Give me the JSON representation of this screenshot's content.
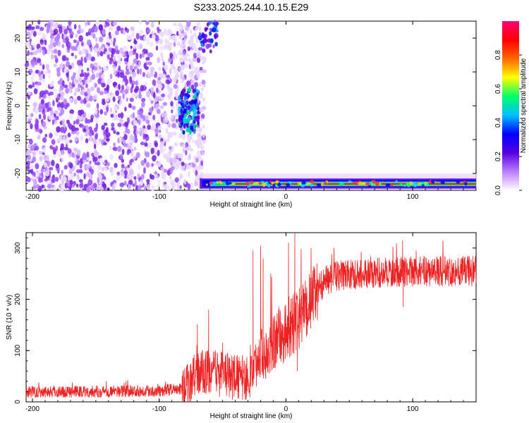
{
  "title": "S233.2025.244.10.15.E29",
  "chart_data": [
    {
      "type": "heatmap",
      "xlabel": "Height of straight line (km)",
      "ylabel": "Frequency (Hz)",
      "xlim": [
        -205,
        150
      ],
      "ylim": [
        -25,
        25
      ],
      "x_ticks": [
        -200,
        -100,
        0,
        100
      ],
      "y_ticks": [
        -20,
        -10,
        0,
        10,
        20
      ],
      "colorbar": {
        "label": "Normalized spectral amplitude",
        "range": [
          0,
          1
        ],
        "ticks": [
          0.0,
          0.2,
          0.4,
          0.6,
          0.8
        ],
        "colors": [
          "#ffffff",
          "#b97cff",
          "#5500dd",
          "#0000ff",
          "#00c0ff",
          "#00ff66",
          "#ffff00",
          "#ff6600",
          "#ff0000",
          "#ff0077"
        ]
      },
      "features": [
        {
          "name": "broadband noise",
          "x_range": [
            -205,
            -82
          ],
          "freq_range": [
            -25,
            25
          ],
          "amplitude": 0.15
        },
        {
          "name": "low-frequency band",
          "x_range": [
            -68,
            150
          ],
          "freq": -23,
          "amplitude": 0.9
        },
        {
          "name": "burst",
          "x_range": [
            -88,
            -68
          ],
          "freq_range": [
            -8,
            5
          ],
          "amplitude": 0.4
        }
      ]
    },
    {
      "type": "line",
      "xlabel": "Height of straight line (km)",
      "ylabel": "SNR (10 * v/v)",
      "xlim": [
        -205,
        150
      ],
      "ylim": [
        0,
        330
      ],
      "x_ticks": [
        -200,
        -100,
        0,
        100
      ],
      "y_ticks": [
        0,
        100,
        200,
        300
      ],
      "color": "#ee2222",
      "series": [
        {
          "name": "SNR",
          "trend": {
            "x": [
              -205,
              -150,
              -100,
              -80,
              -70,
              -60,
              -45,
              -30,
              -20,
              -10,
              0,
              10,
              20,
              30,
              40,
              60,
              100,
              150
            ],
            "y": [
              20,
              20,
              22,
              25,
              55,
              60,
              50,
              45,
              90,
              120,
              135,
              160,
              200,
              235,
              245,
              250,
              255,
              255
            ]
          },
          "spikes": [
            {
              "x": -61,
              "y": 180
            },
            {
              "x": -50,
              "y": 115
            },
            {
              "x": -26,
              "y": 295
            },
            {
              "x": -20,
              "y": 305
            },
            {
              "x": -18,
              "y": 280
            },
            {
              "x": -12,
              "y": 250
            },
            {
              "x": 2,
              "y": 310
            },
            {
              "x": 7,
              "y": 330
            },
            {
              "x": 9,
              "y": 60
            },
            {
              "x": 92,
              "y": 315
            },
            {
              "x": 92.5,
              "y": 185
            }
          ]
        }
      ]
    }
  ]
}
